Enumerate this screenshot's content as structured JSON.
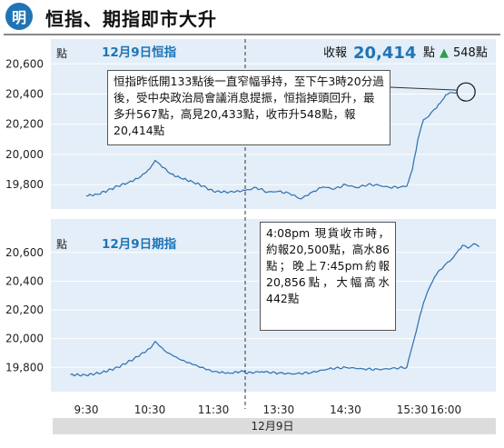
{
  "header": {
    "logo_char": "明",
    "title": "恒指、期指即市大升"
  },
  "chart_data": [
    {
      "type": "line",
      "title": "12月9日恒指",
      "y_unit": "點",
      "ylim": [
        19650,
        20650
      ],
      "yticks": [
        19800,
        20000,
        20200,
        20400,
        20600
      ],
      "ytick_labels": [
        "19,800",
        "20,000",
        "20,200",
        "20,400",
        "20,600"
      ],
      "summary": {
        "label": "收報",
        "close": "20,414",
        "unit": "點",
        "arrow": "▲",
        "change": "548點"
      },
      "annotation": "恒指昨低開133點後一直窄幅爭持，至下午3時20分過後，受中央政治局會議消息提振，恒指掉頭回升，最多升567點，高見20,433點，收市升548點，報20,414點",
      "series": [
        {
          "x": [
            "09:30",
            "09:40",
            "09:50",
            "10:00",
            "10:10",
            "10:20",
            "10:30",
            "10:35",
            "10:40",
            "10:50",
            "11:00",
            "11:10",
            "11:20",
            "11:30",
            "11:45",
            "12:00",
            "13:00",
            "13:10",
            "13:20",
            "13:30",
            "13:40",
            "13:50",
            "14:00",
            "14:10",
            "14:20",
            "14:30",
            "14:40",
            "14:50",
            "15:00",
            "15:10",
            "15:20",
            "15:25",
            "15:30",
            "15:35",
            "15:40",
            "15:45",
            "15:50",
            "15:55",
            "16:00",
            "16:05",
            "16:10"
          ],
          "y": [
            19725,
            19735,
            19760,
            19790,
            19815,
            19845,
            19905,
            19960,
            19930,
            19870,
            19840,
            19820,
            19790,
            19755,
            19750,
            19760,
            19760,
            19780,
            19750,
            19755,
            19740,
            19705,
            19750,
            19785,
            19770,
            19800,
            19780,
            19800,
            19795,
            19780,
            19785,
            19790,
            19900,
            20100,
            20230,
            20255,
            20300,
            20340,
            20395,
            20410,
            20414
          ]
        }
      ]
    },
    {
      "type": "line",
      "title": "12月9日期指",
      "y_unit": "點",
      "ylim": [
        19650,
        20700
      ],
      "yticks": [
        19800,
        20000,
        20200,
        20400,
        20600
      ],
      "ytick_labels": [
        "19,800",
        "20,000",
        "20,200",
        "20,400",
        "20,600"
      ],
      "annotation": "4:08pm 現貨收市時，約報20,500點，高水86點；晚上7:45pm約報20,856點，大幅高水442點",
      "series": [
        {
          "x": [
            "09:15",
            "09:30",
            "09:45",
            "10:00",
            "10:15",
            "10:30",
            "10:35",
            "10:45",
            "11:00",
            "11:15",
            "11:30",
            "11:45",
            "12:00",
            "13:00",
            "13:15",
            "13:30",
            "13:45",
            "14:00",
            "14:15",
            "14:30",
            "14:45",
            "15:00",
            "15:15",
            "15:25",
            "15:30",
            "15:35",
            "15:40",
            "15:45",
            "15:50",
            "15:55",
            "16:00",
            "16:05",
            "16:10",
            "16:15",
            "16:20",
            "16:25",
            "16:30"
          ],
          "y": [
            19750,
            19745,
            19765,
            19800,
            19860,
            19930,
            19980,
            19910,
            19850,
            19810,
            19770,
            19760,
            19775,
            19760,
            19770,
            19760,
            19755,
            19765,
            19790,
            19800,
            19790,
            19785,
            19795,
            19800,
            19950,
            20100,
            20250,
            20350,
            20430,
            20480,
            20520,
            20550,
            20600,
            20650,
            20630,
            20660,
            20640
          ]
        }
      ]
    }
  ],
  "x_axis": {
    "ticks": [
      "9:30",
      "10:30",
      "11:30",
      "13:30",
      "14:30",
      "15:30",
      "16:00"
    ],
    "date_label": "12月9日"
  }
}
